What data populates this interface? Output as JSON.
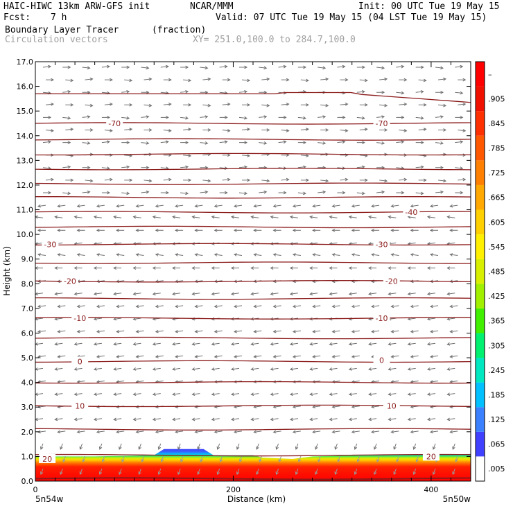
{
  "header": {
    "model": "HAIC-HIWC 13km ARW-GFS init",
    "org": "NCAR/MMM",
    "init": "Init: 00 UTC Tue 19 May 15",
    "fcst_label": "Fcst:",
    "fcst_value": "7 h",
    "valid": "Valid: 07 UTC Tue 19 May 15 (04 LST Tue 19 May 15)",
    "field": "Boundary Layer Tracer",
    "units": "(fraction)",
    "vectors": "Circulation vectors",
    "xy": "XY= 251.0,100.0 to 284.7,100.0"
  },
  "chart_data": {
    "type": "cross-section",
    "title": "Boundary Layer Tracer",
    "xlabel": "Distance (km)",
    "ylabel": "Height (km)",
    "xlim": [
      0,
      440
    ],
    "ylim": [
      0,
      17
    ],
    "x_ticks": [
      0,
      200,
      400
    ],
    "y_ticks": [
      "0.0",
      "1.0",
      "2.0",
      "3.0",
      "4.0",
      "5.0",
      "6.0",
      "7.0",
      "8.0",
      "9.0",
      "10.0",
      "11.0",
      "12.0",
      "13.0",
      "14.0",
      "15.0",
      "16.0",
      "17.0"
    ],
    "x_end_labels": [
      "5n54w",
      "5n50w"
    ],
    "colorbar": {
      "labels": [
        ".005",
        ".065",
        ".125",
        ".185",
        ".245",
        ".305",
        ".365",
        ".425",
        ".485",
        ".545",
        ".605",
        ".665",
        ".725",
        ".785",
        ".845",
        ".905",
        "–"
      ],
      "colors": [
        "#ffffff",
        "#4040ff",
        "#3a80ff",
        "#00c0ff",
        "#00e8c0",
        "#00f070",
        "#40f000",
        "#a0f000",
        "#d8f000",
        "#fff000",
        "#ffd000",
        "#ffa800",
        "#ff8000",
        "#ff5800",
        "#ff3000",
        "#f01000",
        "#ff0000"
      ]
    },
    "contour_labels": [
      {
        "text": "-70",
        "x": 80,
        "y": 14.5
      },
      {
        "text": "-70",
        "x": 350,
        "y": 14.5
      },
      {
        "text": "-40",
        "x": 380,
        "y": 10.9
      },
      {
        "text": "-30",
        "x": 15,
        "y": 9.6
      },
      {
        "text": "-30",
        "x": 350,
        "y": 9.6
      },
      {
        "text": "-20",
        "x": 35,
        "y": 8.1
      },
      {
        "text": "-20",
        "x": 360,
        "y": 8.1
      },
      {
        "text": "-10",
        "x": 45,
        "y": 6.6
      },
      {
        "text": "-10",
        "x": 350,
        "y": 6.6
      },
      {
        "text": "0",
        "x": 45,
        "y": 4.85
      },
      {
        "text": "0",
        "x": 350,
        "y": 4.9
      },
      {
        "text": "10",
        "x": 45,
        "y": 3.05
      },
      {
        "text": "10",
        "x": 360,
        "y": 3.05
      },
      {
        "text": "20",
        "x": 12,
        "y": 0.9
      },
      {
        "text": "20",
        "x": 400,
        "y": 1.0
      }
    ],
    "contour_levels_km": [
      0.1,
      1.05,
      2.1,
      3.05,
      4.0,
      4.85,
      5.8,
      6.6,
      7.4,
      8.1,
      8.85,
      9.6,
      10.3,
      10.9,
      11.5,
      12.05,
      12.65,
      13.25,
      13.85,
      14.5,
      15.7
    ],
    "bl_top_km": [
      [
        0,
        1.0
      ],
      [
        60,
        1.0
      ],
      [
        120,
        1.05
      ],
      [
        130,
        1.3
      ],
      [
        170,
        1.3
      ],
      [
        180,
        1.05
      ],
      [
        220,
        1.05
      ],
      [
        230,
        0.95
      ],
      [
        260,
        0.9
      ],
      [
        280,
        1.0
      ],
      [
        330,
        1.05
      ],
      [
        440,
        1.1
      ]
    ]
  }
}
